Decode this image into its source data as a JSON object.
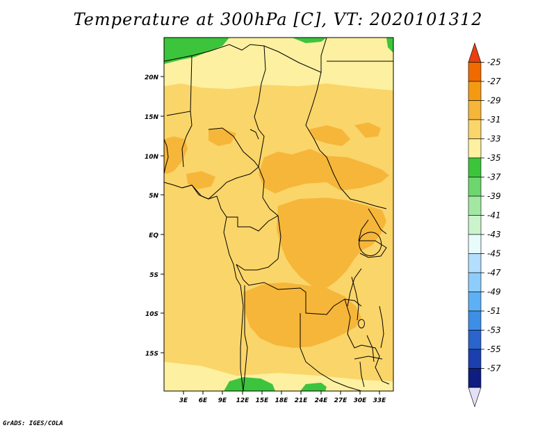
{
  "title": "Temperature at 300hPa [C], VT: 2020101312",
  "credit": "GrADS: IGES/COLA",
  "map": {
    "lat_labels": [
      "20N",
      "15N",
      "10N",
      "5N",
      "EQ",
      "5S",
      "10S",
      "15S"
    ],
    "lon_labels": [
      "3E",
      "6E",
      "9E",
      "12E",
      "15E",
      "18E",
      "21E",
      "24E",
      "27E",
      "30E",
      "33E"
    ]
  },
  "colorbar": {
    "levels": [
      "-25",
      "-27",
      "-29",
      "-31",
      "-33",
      "-35",
      "-37",
      "-39",
      "-41",
      "-43",
      "-45",
      "-47",
      "-49",
      "-51",
      "-53",
      "-55",
      "-57"
    ],
    "colors": [
      "#e8400e",
      "#f06a00",
      "#f49a12",
      "#f6b63a",
      "#fad569",
      "#fdf0a0",
      "#3cc43c",
      "#6ed66e",
      "#a2e8a2",
      "#ccf4cc",
      "#e8fbfb",
      "#b3defe",
      "#8ccdfb",
      "#5eb0f6",
      "#3d8fe6",
      "#2a64cc",
      "#1b3fae",
      "#0f1c80",
      "#e4e0f6"
    ]
  }
}
